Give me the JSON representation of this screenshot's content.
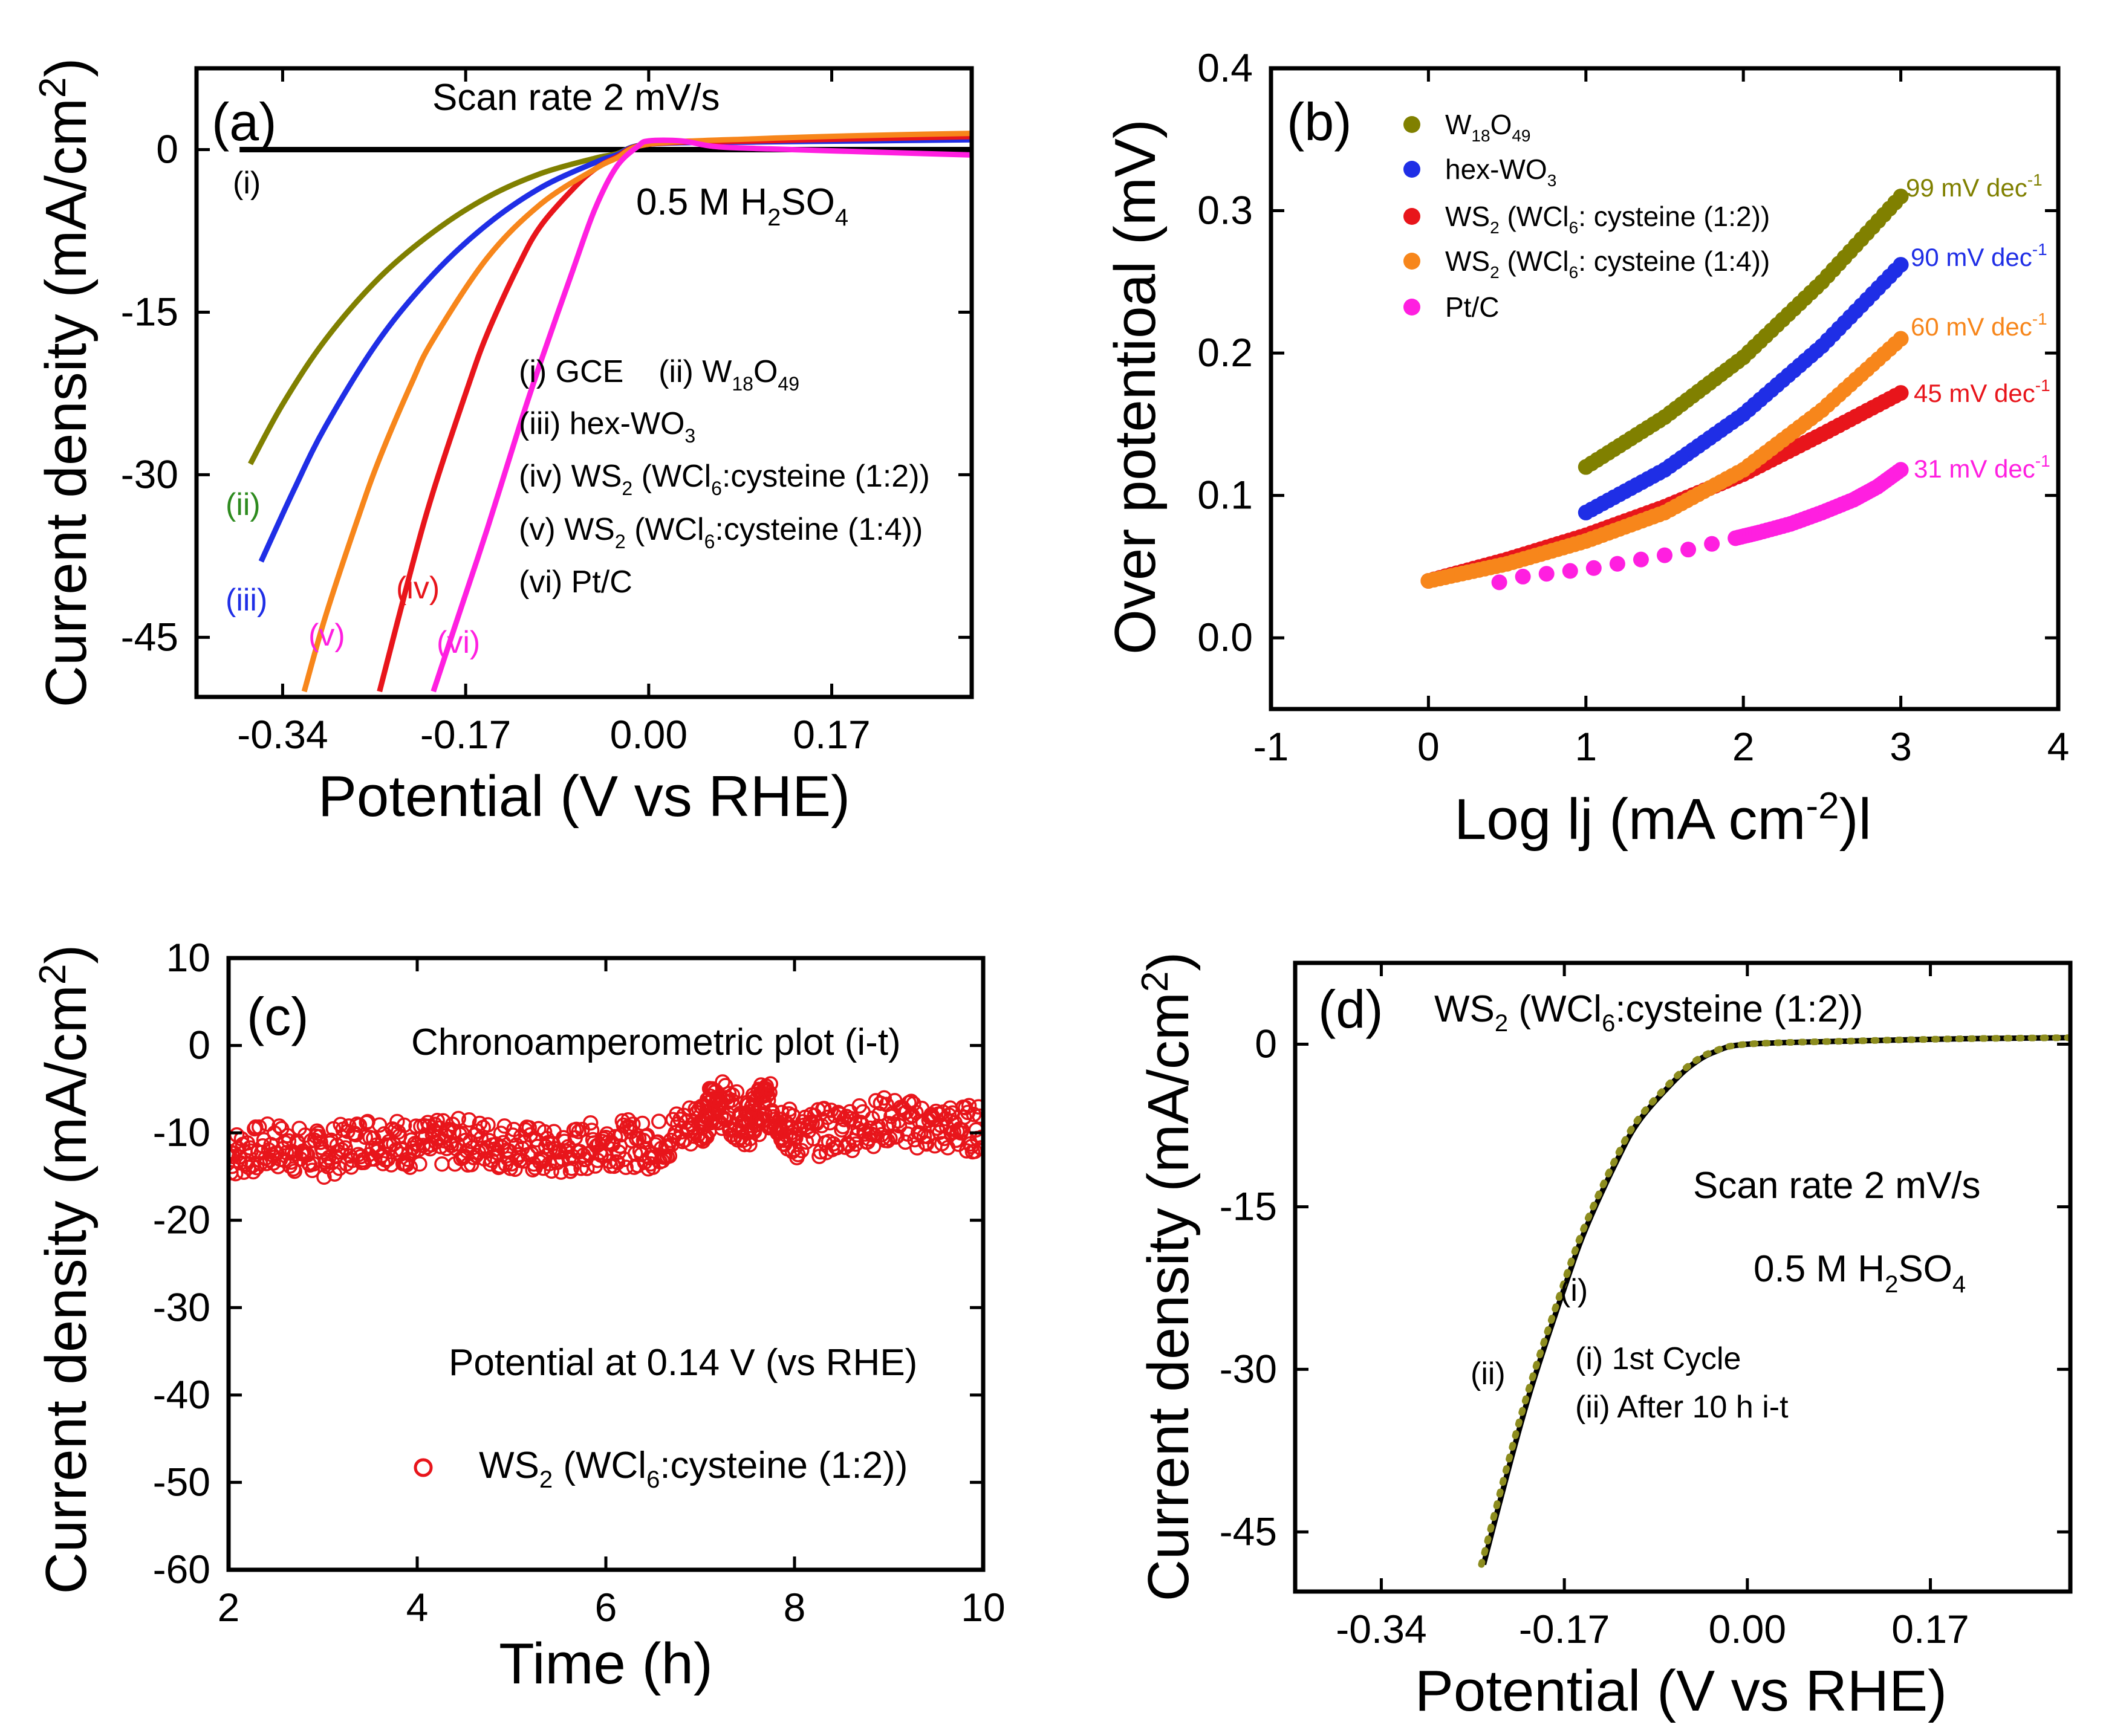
{
  "colors": {
    "gce": "#000000",
    "w18o49": "#808000",
    "hexwo3": "#1f2ee6",
    "ws2_12": "#e8151b",
    "ws2_14": "#f7861b",
    "ptc": "#ff1fe0",
    "green_label": "#2e8b1f",
    "cycle2": "#8c8c1e"
  },
  "chart_data": [
    {
      "panel": "a",
      "type": "line",
      "panel_label": "(a)",
      "title": "Scan rate 2 mV/s",
      "electrolyte": "0.5 M H2SO4",
      "xlabel": "Potential (V vs RHE)",
      "ylabel": "Current density (mA/cm2)",
      "xlim": [
        -0.42,
        0.3
      ],
      "ylim": [
        -50.5,
        7.5
      ],
      "xticks": [
        "-0.34",
        "-0.17",
        "0.00",
        "0.17"
      ],
      "yticks": [
        "0",
        "-15",
        "-30",
        "-45"
      ],
      "legend_lines": [
        "(i) GCE    (ii) W18O49",
        "(iii) hex-WO3",
        "(iv) WS2 (WCl6:cysteine (1:2))",
        "(v) WS2 (WCl6:cysteine (1:4))",
        "(vi) Pt/C"
      ],
      "series": [
        {
          "name": "(i) GCE",
          "label": "(i)",
          "color_key": "gce",
          "x": [
            -0.38,
            -0.3,
            -0.2,
            -0.1,
            0.0,
            0.1,
            0.2,
            0.3
          ],
          "y": [
            0,
            0,
            0,
            0,
            0,
            0,
            0,
            0
          ]
        },
        {
          "name": "(ii) W18O49",
          "label": "(ii)",
          "color_key": "w18o49",
          "x": [
            -0.37,
            -0.34,
            -0.3,
            -0.25,
            -0.2,
            -0.15,
            -0.1,
            -0.05,
            -0.03,
            0.0,
            0.1,
            0.2,
            0.3
          ],
          "y": [
            -29,
            -23.5,
            -17.5,
            -11.8,
            -7.6,
            -4.4,
            -2.2,
            -0.8,
            -0.4,
            0.5,
            0.8,
            1.0,
            1.2
          ]
        },
        {
          "name": "(iii) hex-WO3",
          "label": "(iii)",
          "color_key": "hexwo3",
          "x": [
            -0.36,
            -0.33,
            -0.3,
            -0.25,
            -0.2,
            -0.15,
            -0.1,
            -0.05,
            -0.03,
            0.0,
            0.1,
            0.2,
            0.3
          ],
          "y": [
            -38,
            -31.5,
            -25.5,
            -17.5,
            -11.5,
            -6.9,
            -3.5,
            -1.2,
            -0.5,
            0.5,
            0.7,
            0.8,
            0.9
          ]
        },
        {
          "name": "(iv) WS2 (WCl6:cysteine (1:2))",
          "label": "(iv)",
          "color_key": "ws2_12",
          "x": [
            -0.25,
            -0.22,
            -0.2,
            -0.17,
            -0.15,
            -0.12,
            -0.1,
            -0.07,
            -0.05,
            -0.03,
            0.0,
            0.1,
            0.2,
            0.3
          ],
          "y": [
            -50,
            -38.5,
            -31.5,
            -22.5,
            -17,
            -10.5,
            -7,
            -3.6,
            -1.8,
            -0.7,
            0.5,
            0.8,
            1.0,
            1.2
          ]
        },
        {
          "name": "(v) WS2 (WCl6:cysteine (1:4))",
          "label": "(v)",
          "color_key": "ws2_14",
          "x": [
            -0.32,
            -0.3,
            -0.27,
            -0.25,
            -0.22,
            -0.2,
            -0.15,
            -0.1,
            -0.05,
            -0.03,
            0.0,
            0.1,
            0.2,
            0.3
          ],
          "y": [
            -50,
            -43,
            -34,
            -28.5,
            -21.5,
            -17.5,
            -10,
            -5,
            -1.8,
            -0.8,
            0.5,
            1.0,
            1.3,
            1.5
          ]
        },
        {
          "name": "(vi) Pt/C",
          "label": "(vi)",
          "color_key": "ptc",
          "x": [
            -0.2,
            -0.18,
            -0.15,
            -0.12,
            -0.1,
            -0.07,
            -0.05,
            -0.03,
            -0.01,
            0.0,
            0.03,
            0.06,
            0.1,
            0.2,
            0.3
          ],
          "y": [
            -50,
            -44,
            -35,
            -25.5,
            -19.5,
            -11,
            -5.5,
            -1.6,
            0.3,
            0.8,
            0.8,
            0.3,
            0.1,
            -0.2,
            -0.5
          ]
        }
      ]
    },
    {
      "panel": "b",
      "type": "scatter",
      "panel_label": "(b)",
      "xlabel": "Log lj (mA cm-2)l",
      "ylabel": "Over potentioal (mV)",
      "xlim": [
        -1,
        4
      ],
      "ylim": [
        -0.05,
        0.4
      ],
      "xticks": [
        "-1",
        "0",
        "1",
        "2",
        "3",
        "4"
      ],
      "yticks": [
        "0.0",
        "0.1",
        "0.2",
        "0.3",
        "0.4"
      ],
      "series": [
        {
          "name": "W18O49",
          "color_key": "w18o49",
          "slope_label": "99 mV dec-1",
          "x": [
            1.0,
            1.5,
            2.0,
            2.5,
            3.0
          ],
          "y": [
            0.12,
            0.155,
            0.197,
            0.25,
            0.31
          ]
        },
        {
          "name": "hex-WO3",
          "color_key": "hexwo3",
          "slope_label": "90 mV dec-1",
          "x": [
            1.0,
            1.5,
            2.0,
            2.5,
            3.0
          ],
          "y": [
            0.088,
            0.118,
            0.157,
            0.205,
            0.262
          ]
        },
        {
          "name": "WS2 (WCl6: cysteine (1:2))",
          "color_key": "ws2_12",
          "slope_label": "45 mV dec-1",
          "x": [
            0.0,
            0.5,
            1.0,
            1.5,
            2.0,
            2.5,
            3.0
          ],
          "y": [
            0.04,
            0.055,
            0.072,
            0.092,
            0.115,
            0.143,
            0.172
          ]
        },
        {
          "name": "WS2 (WCl6: cysteine (1:4))",
          "color_key": "ws2_14",
          "slope_label": "60 mV dec-1",
          "x": [
            0.0,
            0.5,
            1.0,
            1.5,
            2.0,
            2.5,
            3.0
          ],
          "y": [
            0.04,
            0.052,
            0.068,
            0.088,
            0.118,
            0.16,
            0.21
          ]
        },
        {
          "name": "Pt/C",
          "color_key": "ptc",
          "slope_label": "31 mV dec-1",
          "x": [
            0.45,
            0.6,
            0.75,
            0.9,
            1.05,
            1.2,
            1.35,
            1.5,
            1.65,
            1.8,
            1.95,
            2.1,
            2.3,
            2.5,
            2.7,
            2.85,
            3.0
          ],
          "y": [
            0.039,
            0.043,
            0.045,
            0.047,
            0.049,
            0.052,
            0.055,
            0.058,
            0.062,
            0.066,
            0.07,
            0.074,
            0.08,
            0.088,
            0.097,
            0.106,
            0.118
          ]
        }
      ]
    },
    {
      "panel": "c",
      "type": "scatter",
      "panel_label": "(c)",
      "title": "Chronoamperometric plot (i-t)",
      "note": "Potential at 0.14 V (vs RHE)",
      "xlabel": "Time (h)",
      "ylabel": "Current density (mA/cm2)",
      "xlim": [
        2,
        10
      ],
      "ylim": [
        -60,
        10
      ],
      "xticks": [
        "2",
        "4",
        "6",
        "8",
        "10"
      ],
      "yticks": [
        "10",
        "0",
        "-10",
        "-20",
        "-30",
        "-40",
        "-50",
        "-60"
      ],
      "series": [
        {
          "name": "WS2 (WCl6:cysteine (1:2))",
          "color_key": "ws2_12",
          "x": [
            2.0,
            2.5,
            3.0,
            3.5,
            4.0,
            4.5,
            5.0,
            5.5,
            6.0,
            6.5,
            7.0,
            7.2,
            7.5,
            7.7,
            8.0,
            8.5,
            9.0,
            9.5,
            10.0
          ],
          "y": [
            -12.5,
            -11.5,
            -12.5,
            -10.5,
            -11.5,
            -11.0,
            -11.5,
            -12.5,
            -11.0,
            -11.5,
            -8.5,
            -6.5,
            -9.0,
            -6.5,
            -10.5,
            -9.5,
            -8.5,
            -9.5,
            -9.5
          ]
        }
      ]
    },
    {
      "panel": "d",
      "type": "line",
      "panel_label": "(d)",
      "title": "WS2 (WCl6:cysteine (1:2))",
      "scan_rate": "Scan rate 2 mV/s",
      "electrolyte": "0.5 M H2SO4",
      "xlabel": "Potential (V vs RHE)",
      "ylabel": "Current density (mA/cm2)",
      "xlim": [
        -0.42,
        0.3
      ],
      "ylim": [
        -50.5,
        7.5
      ],
      "xticks": [
        "-0.34",
        "-0.17",
        "0.00",
        "0.17"
      ],
      "yticks": [
        "0",
        "-15",
        "-30",
        "-45"
      ],
      "legend_lines": [
        "(i) 1st Cycle",
        "(ii) After 10 h i-t"
      ],
      "series": [
        {
          "name": "(i) 1st Cycle",
          "label": "(i)",
          "color_key": "gce",
          "x": [
            -0.245,
            -0.22,
            -0.2,
            -0.17,
            -0.15,
            -0.12,
            -0.1,
            -0.07,
            -0.05,
            -0.03,
            0.0,
            0.1,
            0.2,
            0.3
          ],
          "y": [
            -48,
            -38.5,
            -31.5,
            -22.5,
            -17,
            -10.5,
            -7,
            -3.6,
            -1.8,
            -0.7,
            0.0,
            0.3,
            0.5,
            0.6
          ]
        },
        {
          "name": "(ii) After 10 h i-t",
          "label": "(ii)",
          "color_key": "cycle2",
          "x": [
            -0.247,
            -0.222,
            -0.202,
            -0.172,
            -0.152,
            -0.122,
            -0.102,
            -0.072,
            -0.052,
            -0.032,
            0.0,
            0.1,
            0.2,
            0.3
          ],
          "y": [
            -48,
            -38.5,
            -31.5,
            -22.5,
            -17,
            -10.5,
            -7,
            -3.6,
            -1.8,
            -0.7,
            0.0,
            0.3,
            0.5,
            0.6
          ]
        }
      ]
    }
  ]
}
